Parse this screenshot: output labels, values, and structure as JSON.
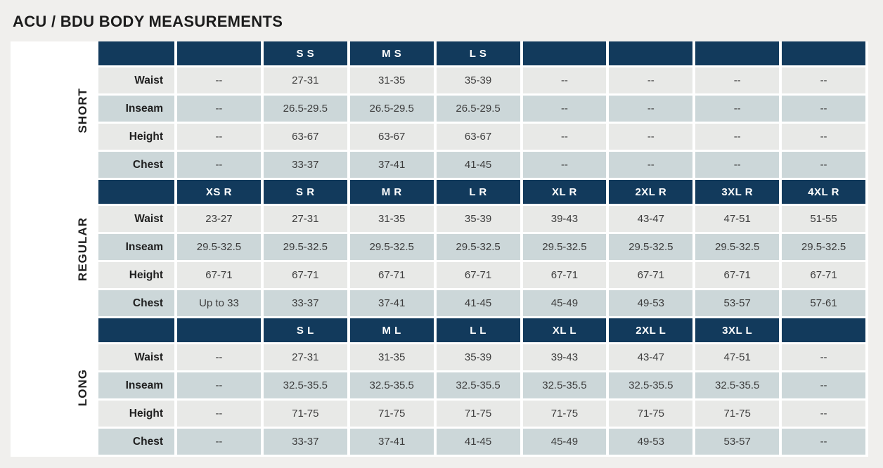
{
  "page": {
    "title": "ACU / BDU BODY MEASUREMENTS"
  },
  "colors": {
    "page_bg": "#f0efed",
    "band_bg": "#ffffff",
    "header_bg": "#123a5c",
    "header_text": "#ffffff",
    "row_light": "#e8e9e7",
    "row_alt": "#ccd7d9",
    "gap": "#ffffff",
    "title_text": "#1c1c1c",
    "row_label_text": "#1f1f1f",
    "value_text": "#3d3d3d"
  },
  "chart_data": {
    "type": "table",
    "title": "ACU / BDU BODY MEASUREMENTS",
    "sections": [
      {
        "id": "short",
        "label": "SHORT",
        "size_headers": [
          "",
          "S S",
          "M S",
          "L S",
          "",
          "",
          "",
          ""
        ],
        "rows": [
          {
            "label": "Waist",
            "values": [
              "--",
              "27-31",
              "31-35",
              "35-39",
              "--",
              "--",
              "--",
              "--"
            ]
          },
          {
            "label": "Inseam",
            "values": [
              "--",
              "26.5-29.5",
              "26.5-29.5",
              "26.5-29.5",
              "--",
              "--",
              "--",
              "--"
            ]
          },
          {
            "label": "Height",
            "values": [
              "--",
              "63-67",
              "63-67",
              "63-67",
              "--",
              "--",
              "--",
              "--"
            ]
          },
          {
            "label": "Chest",
            "values": [
              "--",
              "33-37",
              "37-41",
              "41-45",
              "--",
              "--",
              "--",
              "--"
            ]
          }
        ]
      },
      {
        "id": "regular",
        "label": "REGULAR",
        "size_headers": [
          "XS R",
          "S R",
          "M R",
          "L R",
          "XL R",
          "2XL R",
          "3XL R",
          "4XL R"
        ],
        "rows": [
          {
            "label": "Waist",
            "values": [
              "23-27",
              "27-31",
              "31-35",
              "35-39",
              "39-43",
              "43-47",
              "47-51",
              "51-55"
            ]
          },
          {
            "label": "Inseam",
            "values": [
              "29.5-32.5",
              "29.5-32.5",
              "29.5-32.5",
              "29.5-32.5",
              "29.5-32.5",
              "29.5-32.5",
              "29.5-32.5",
              "29.5-32.5"
            ]
          },
          {
            "label": "Height",
            "values": [
              "67-71",
              "67-71",
              "67-71",
              "67-71",
              "67-71",
              "67-71",
              "67-71",
              "67-71"
            ]
          },
          {
            "label": "Chest",
            "values": [
              "Up to 33",
              "33-37",
              "37-41",
              "41-45",
              "45-49",
              "49-53",
              "53-57",
              "57-61"
            ]
          }
        ]
      },
      {
        "id": "long",
        "label": "LONG",
        "size_headers": [
          "",
          "S L",
          "M L",
          "L L",
          "XL L",
          "2XL L",
          "3XL L",
          ""
        ],
        "rows": [
          {
            "label": "Waist",
            "values": [
              "--",
              "27-31",
              "31-35",
              "35-39",
              "39-43",
              "43-47",
              "47-51",
              "--"
            ]
          },
          {
            "label": "Inseam",
            "values": [
              "--",
              "32.5-35.5",
              "32.5-35.5",
              "32.5-35.5",
              "32.5-35.5",
              "32.5-35.5",
              "32.5-35.5",
              "--"
            ]
          },
          {
            "label": "Height",
            "values": [
              "--",
              "71-75",
              "71-75",
              "71-75",
              "71-75",
              "71-75",
              "71-75",
              "--"
            ]
          },
          {
            "label": "Chest",
            "values": [
              "--",
              "33-37",
              "37-41",
              "41-45",
              "45-49",
              "49-53",
              "53-57",
              "--"
            ]
          }
        ]
      }
    ]
  }
}
